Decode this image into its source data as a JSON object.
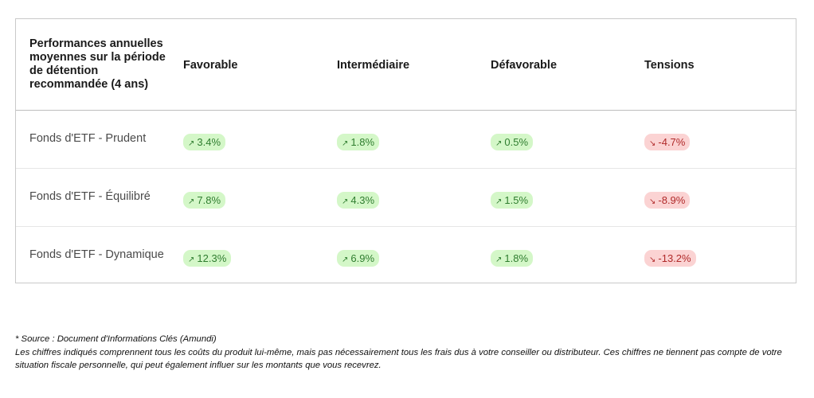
{
  "table": {
    "header": {
      "first": "Performances annuelles moyennes sur la période de détention recommandée (4 ans)",
      "columns": [
        "Favorable",
        "Intermédiaire",
        "Défavorable",
        "Tensions"
      ]
    },
    "rows": [
      {
        "fund": "Fonds d'ETF - Prudent",
        "values": [
          {
            "text": "3.4%",
            "trend": "up"
          },
          {
            "text": "1.8%",
            "trend": "up"
          },
          {
            "text": "0.5%",
            "trend": "up"
          },
          {
            "text": "-4.7%",
            "trend": "down"
          }
        ]
      },
      {
        "fund": "Fonds d'ETF - Équilibré",
        "values": [
          {
            "text": "7.8%",
            "trend": "up"
          },
          {
            "text": "4.3%",
            "trend": "up"
          },
          {
            "text": "1.5%",
            "trend": "up"
          },
          {
            "text": "-8.9%",
            "trend": "down"
          }
        ]
      },
      {
        "fund": "Fonds d'ETF - Dynamique",
        "values": [
          {
            "text": "12.3%",
            "trend": "up"
          },
          {
            "text": "6.9%",
            "trend": "up"
          },
          {
            "text": "1.8%",
            "trend": "up"
          },
          {
            "text": "-13.2%",
            "trend": "down"
          }
        ]
      }
    ],
    "icons": {
      "up": "trend-up-arrow-icon",
      "down": "trend-down-arrow-icon"
    },
    "colors": {
      "up_bg": "#d4f7c8",
      "up_text": "#2f7d2f",
      "down_bg": "#fbd3d3",
      "down_text": "#b02a2a"
    }
  },
  "footnote": {
    "source": "* Source : Document d'Informations Clés (Amundi)",
    "note": "Les chiffres indiqués comprennent tous les coûts du produit lui-même, mais pas nécessairement tous les frais dus à votre conseiller ou distributeur. Ces chiffres ne tiennent pas compte de votre situation fiscale personnelle, qui peut également influer sur les montants que vous recevrez."
  }
}
